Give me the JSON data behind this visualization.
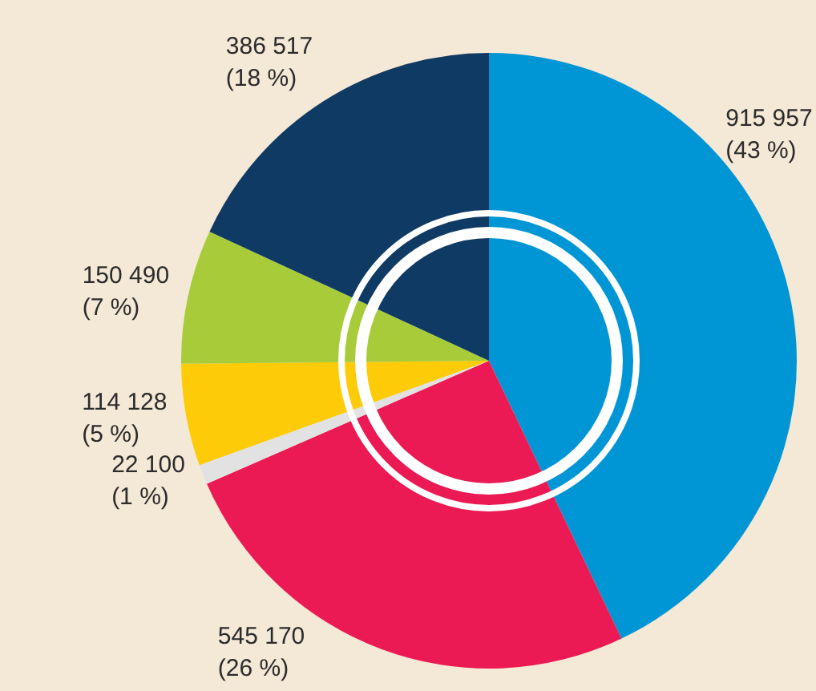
{
  "chart_data": {
    "type": "pie",
    "categories": [
      null,
      null,
      null,
      null,
      null,
      null
    ],
    "values": [
      915957,
      545170,
      22100,
      114128,
      150490,
      386517
    ],
    "colors": [
      "#0096d6",
      "#ec1a54",
      "#e2e2e2",
      "#fecb09",
      "#a8cb3a",
      "#0f3a63"
    ],
    "value_labels": [
      "915 957\n(43 %)",
      "545 170\n(26 %)",
      "22 100\n(1 %)",
      "114 128\n(5 %)",
      "150 490\n(7 %)",
      "386 517\n(18 %)"
    ],
    "legend": false
  }
}
